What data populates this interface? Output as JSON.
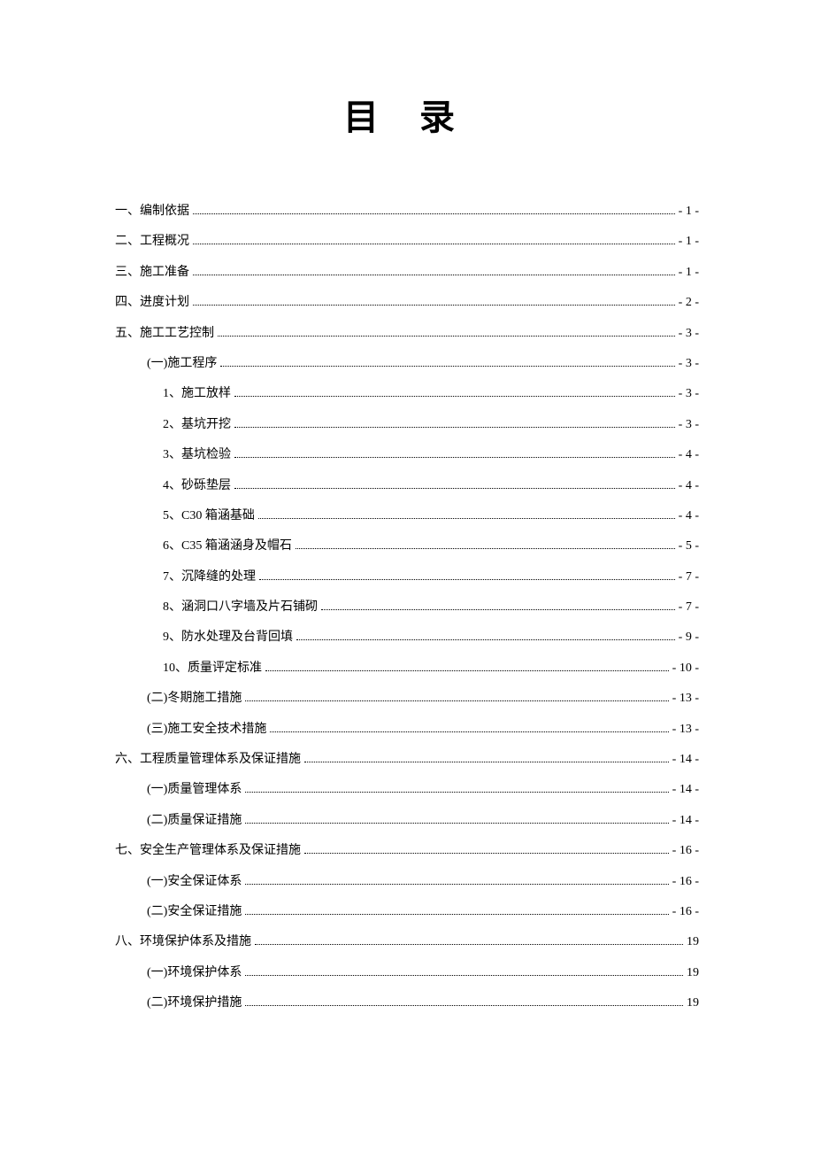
{
  "title": "目 录",
  "toc": [
    {
      "level": 0,
      "label": "一、编制依据",
      "page": "- 1 -"
    },
    {
      "level": 0,
      "label": "二、工程概况",
      "page": "- 1 -"
    },
    {
      "level": 0,
      "label": "三、施工准备",
      "page": "- 1 -"
    },
    {
      "level": 0,
      "label": "四、进度计划",
      "page": "- 2 -"
    },
    {
      "level": 0,
      "label": "五、施工工艺控制",
      "page": "- 3 -"
    },
    {
      "level": 1,
      "label": "(一)施工程序",
      "page": "- 3 -"
    },
    {
      "level": 2,
      "label": "1、施工放样",
      "page": "- 3 -"
    },
    {
      "level": 2,
      "label": "2、基坑开挖",
      "page": "- 3 -"
    },
    {
      "level": 2,
      "label": "3、基坑检验",
      "page": "- 4 -"
    },
    {
      "level": 2,
      "label": "4、砂砾垫层",
      "page": "- 4 -"
    },
    {
      "level": 2,
      "label": "5、C30 箱涵基础",
      "page": "- 4 -"
    },
    {
      "level": 2,
      "label": "6、C35 箱涵涵身及帽石",
      "page": "- 5 -"
    },
    {
      "level": 2,
      "label": "7、沉降缝的处理",
      "page": "- 7 -"
    },
    {
      "level": 2,
      "label": "8、涵洞口八字墙及片石铺砌",
      "page": "- 7 -"
    },
    {
      "level": 2,
      "label": "9、防水处理及台背回填",
      "page": "- 9 -"
    },
    {
      "level": 2,
      "label": "10、质量评定标准",
      "page": "- 10 -"
    },
    {
      "level": 1,
      "label": "(二)冬期施工措施",
      "page": "- 13 -"
    },
    {
      "level": 1,
      "label": "(三)施工安全技术措施",
      "page": "- 13 -"
    },
    {
      "level": 0,
      "label": "六、工程质量管理体系及保证措施",
      "page": "- 14 -"
    },
    {
      "level": 1,
      "label": "(一)质量管理体系",
      "page": "- 14 -"
    },
    {
      "level": 1,
      "label": "(二)质量保证措施",
      "page": "- 14 -"
    },
    {
      "level": 0,
      "label": "七、安全生产管理体系及保证措施",
      "page": "- 16 -"
    },
    {
      "level": 1,
      "label": "(一)安全保证体系",
      "page": "- 16 -"
    },
    {
      "level": 1,
      "label": "(二)安全保证措施",
      "page": "- 16 -"
    },
    {
      "level": 0,
      "label": "八、环境保护体系及措施",
      "page": "19"
    },
    {
      "level": 1,
      "label": "(一)环境保护体系",
      "page": "19"
    },
    {
      "level": 1,
      "label": "(二)环境保护措施",
      "page": "19"
    }
  ]
}
